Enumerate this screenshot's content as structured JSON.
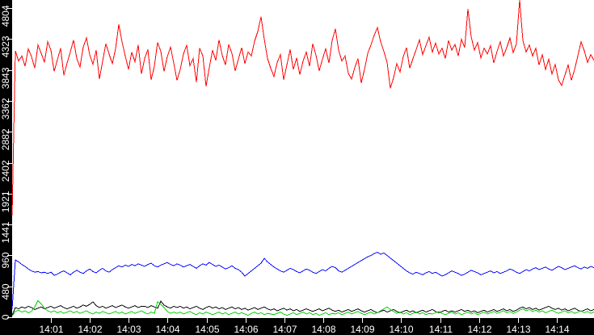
{
  "chart_data": {
    "type": "line",
    "title": "",
    "xlabel": "",
    "ylabel": "",
    "grid": false,
    "legend": "none",
    "plot_bg_color": "#ffffff",
    "axis_strip_color": "#000000",
    "axis_text_color": "#ffffff",
    "y_axis": {
      "min": 0,
      "max": 4804,
      "tick_values": [
        0,
        480,
        960,
        1441,
        1921,
        2402,
        2882,
        3362,
        3843,
        4323,
        4804
      ],
      "tick_labels": [
        "0",
        "480",
        "960",
        "1441",
        "1921",
        "2402",
        "2882",
        "3362",
        "3843",
        "4323",
        "4804"
      ]
    },
    "x_axis": {
      "start_minute": 0,
      "end_minute": 14.93,
      "ticks": [
        {
          "label": "14:01",
          "minute": 1
        },
        {
          "label": "14:02",
          "minute": 2
        },
        {
          "label": "14:03",
          "minute": 3
        },
        {
          "label": "14:04",
          "minute": 4
        },
        {
          "label": "14:05",
          "minute": 5
        },
        {
          "label": "14:06",
          "minute": 6
        },
        {
          "label": "14:07",
          "minute": 7
        },
        {
          "label": "14:08",
          "minute": 8
        },
        {
          "label": "14:09",
          "minute": 9
        },
        {
          "label": "14:10",
          "minute": 10
        },
        {
          "label": "14:11",
          "minute": 11
        },
        {
          "label": "14:12",
          "minute": 12
        },
        {
          "label": "14:13",
          "minute": 13
        },
        {
          "label": "14:14",
          "minute": 14
        }
      ]
    },
    "series": [
      {
        "name": "red",
        "color": "#ff0000",
        "values": [
          1580,
          4140,
          3980,
          4060,
          3900,
          4170,
          4050,
          3870,
          4230,
          4100,
          3960,
          4280,
          4150,
          3820,
          4000,
          4180,
          3760,
          3950,
          4120,
          4310,
          4020,
          3890,
          4200,
          4340,
          4080,
          3930,
          4150,
          3700,
          3980,
          4250,
          4090,
          3940,
          4170,
          4550,
          4280,
          4060,
          3850,
          4120,
          3970,
          4230,
          3780,
          4020,
          4160,
          3690,
          3900,
          4270,
          4130,
          3820,
          4050,
          4200,
          3950,
          3680,
          3850,
          4090,
          4230,
          3910,
          4020,
          3650,
          4180,
          4060,
          3590,
          3880,
          4150,
          3990,
          4310,
          4070,
          3920,
          4240,
          4100,
          3830,
          4010,
          4190,
          3940,
          4120,
          4060,
          4290,
          4440,
          4670,
          4320,
          4020,
          3870,
          3740,
          3960,
          4080,
          3690,
          3920,
          4160,
          3850,
          4030,
          3770,
          3980,
          4120,
          3900,
          4250,
          4070,
          3830,
          4010,
          4170,
          3950,
          4300,
          4480,
          4150,
          3980,
          4060,
          3790,
          3700,
          3880,
          4020,
          3640,
          3850,
          4100,
          4230,
          4380,
          4500,
          4280,
          4130,
          3960,
          3560,
          3720,
          3940,
          3810,
          4050,
          4190,
          3870,
          4020,
          4160,
          4310,
          4080,
          4220,
          4350,
          4120,
          4260,
          4090,
          4180,
          4020,
          4300,
          4150,
          4240,
          4060,
          4320,
          4190,
          4790,
          4360,
          4150,
          4270,
          4030,
          4180,
          4090,
          4220,
          3950,
          4130,
          4280,
          4060,
          4190,
          4340,
          4110,
          4250,
          4950,
          4300,
          4120,
          4230,
          4060,
          4180,
          3920,
          4080,
          3850,
          4010,
          3780,
          3930,
          3690,
          3600,
          3760,
          3920,
          3680,
          3850,
          4060,
          4280,
          4140,
          3960,
          4080,
          3990
        ]
      },
      {
        "name": "blue",
        "color": "#0000ff",
        "values": [
          125,
          890,
          860,
          820,
          790,
          750,
          720,
          700,
          710,
          690,
          700,
          680,
          700,
          650,
          670,
          700,
          720,
          690,
          660,
          700,
          730,
          700,
          680,
          720,
          750,
          710,
          690,
          730,
          760,
          720,
          700,
          740,
          770,
          800,
          780,
          810,
          790,
          820,
          800,
          830,
          810,
          790,
          820,
          840,
          800,
          780,
          810,
          830,
          850,
          820,
          800,
          830,
          810,
          780,
          800,
          820,
          790,
          760,
          800,
          830,
          810,
          850,
          820,
          790,
          810,
          780,
          750,
          770,
          800,
          760,
          740,
          700,
          640,
          680,
          720,
          760,
          800,
          840,
          915,
          860,
          820,
          780,
          750,
          720,
          700,
          730,
          760,
          740,
          710,
          690,
          720,
          750,
          730,
          700,
          680,
          710,
          740,
          720,
          760,
          790,
          770,
          720,
          700,
          730,
          760,
          790,
          820,
          850,
          880,
          910,
          940,
          960,
          990,
          1010,
          980,
          1000,
          960,
          920,
          880,
          840,
          800,
          760,
          720,
          690,
          670,
          700,
          680,
          660,
          690,
          710,
          680,
          700,
          670,
          640,
          660,
          690,
          720,
          700,
          680,
          650,
          670,
          700,
          730,
          710,
          690,
          660,
          680,
          700,
          720,
          690,
          710,
          680,
          700,
          720,
          750,
          730,
          700,
          680,
          710,
          740,
          720,
          750,
          770,
          740,
          760,
          780,
          750,
          730,
          760,
          790,
          770,
          740,
          760,
          780,
          800,
          770,
          750,
          780,
          760,
          790,
          770
        ]
      },
      {
        "name": "black",
        "color": "#000000",
        "values": [
          30,
          150,
          130,
          160,
          140,
          170,
          150,
          120,
          140,
          160,
          130,
          150,
          170,
          140,
          160,
          180,
          150,
          130,
          150,
          170,
          140,
          160,
          190,
          170,
          200,
          240,
          180,
          150,
          170,
          140,
          160,
          180,
          150,
          170,
          190,
          160,
          140,
          160,
          180,
          150,
          170,
          170,
          150,
          180,
          160,
          140,
          250,
          190,
          160,
          140,
          170,
          150,
          170,
          140,
          160,
          130,
          150,
          170,
          140,
          120,
          150,
          170,
          140,
          160,
          130,
          150,
          120,
          140,
          160,
          130,
          150,
          120,
          140,
          110,
          130,
          150,
          120,
          140,
          160,
          130,
          110,
          130,
          100,
          120,
          140,
          110,
          130,
          100,
          120,
          90,
          110,
          130,
          110,
          90,
          110,
          130,
          100,
          120,
          140,
          110,
          90,
          110,
          80,
          100,
          120,
          90,
          110,
          130,
          100,
          80,
          100,
          120,
          90,
          70,
          90,
          110,
          80,
          100,
          120,
          90,
          70,
          90,
          110,
          80,
          100,
          70,
          90,
          110,
          80,
          100,
          120,
          90,
          70,
          90,
          110,
          80,
          100,
          80,
          100,
          120,
          90,
          110,
          80,
          100,
          70,
          90,
          110,
          80,
          100,
          120,
          90,
          110,
          130,
          100,
          120,
          90,
          110,
          140,
          160,
          130,
          150,
          120,
          140,
          110,
          130,
          150,
          170,
          140,
          120,
          140,
          110,
          130,
          100,
          120,
          140,
          110,
          90,
          110,
          130,
          100,
          120
        ]
      },
      {
        "name": "green",
        "color": "#00d000",
        "values": [
          20,
          90,
          110,
          80,
          100,
          70,
          90,
          160,
          260,
          210,
          140,
          100,
          80,
          100,
          70,
          90,
          60,
          80,
          100,
          70,
          90,
          60,
          80,
          100,
          70,
          50,
          80,
          60,
          90,
          70,
          50,
          70,
          90,
          60,
          80,
          50,
          70,
          90,
          60,
          80,
          100,
          70,
          50,
          80,
          60,
          240,
          200,
          150,
          90,
          60,
          80,
          60,
          80,
          50,
          70,
          90,
          60,
          40,
          70,
          50,
          80,
          60,
          40,
          60,
          80,
          50,
          70,
          40,
          60,
          80,
          50,
          70,
          50,
          30,
          60,
          80,
          50,
          70,
          40,
          60,
          50,
          40,
          60,
          80,
          50,
          30,
          50,
          70,
          40,
          60,
          80,
          50,
          70,
          40,
          60,
          30,
          50,
          70,
          40,
          60,
          50,
          70,
          40,
          60,
          80,
          50,
          70,
          90,
          60,
          40,
          60,
          80,
          50,
          70,
          100,
          130,
          160,
          120,
          90,
          60,
          80,
          50,
          70,
          40,
          60,
          80,
          50,
          70,
          40,
          60,
          50,
          70,
          90,
          60,
          40,
          60,
          80,
          50,
          70,
          40,
          60,
          80,
          50,
          70,
          40,
          60,
          80,
          50,
          70,
          90,
          60,
          80,
          100,
          70,
          90,
          60,
          80,
          110,
          130,
          100,
          120,
          90,
          110,
          80,
          100,
          70,
          90,
          110,
          80,
          60,
          80,
          100,
          70,
          90,
          60,
          80,
          100,
          70,
          90,
          60,
          80
        ]
      }
    ]
  }
}
